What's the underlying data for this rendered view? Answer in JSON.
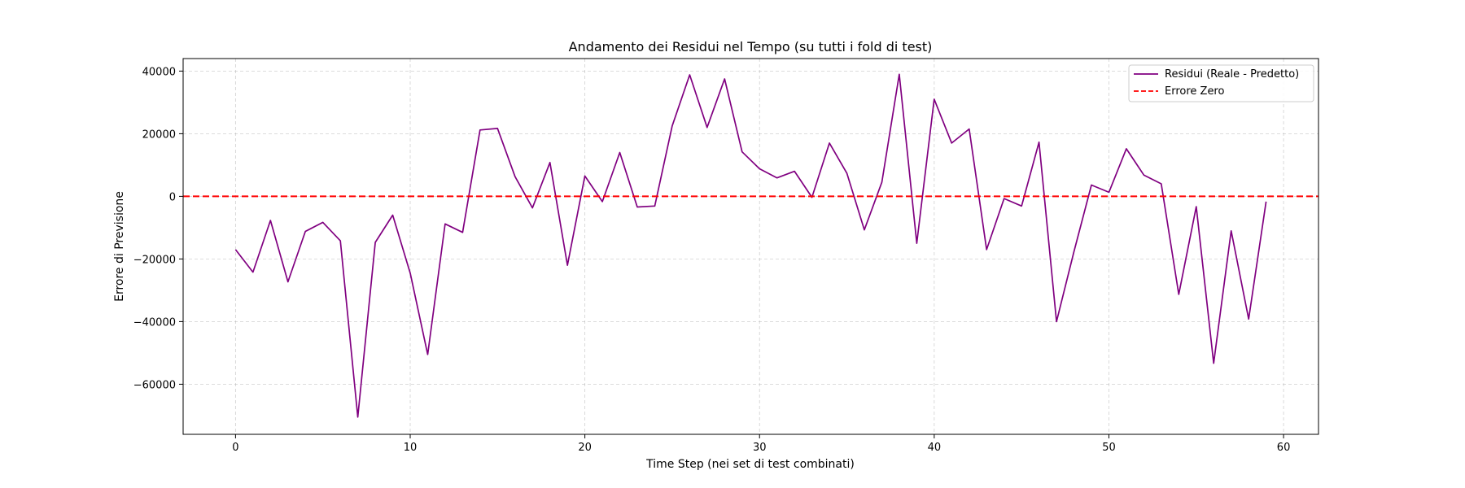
{
  "chart_data": {
    "type": "line",
    "title": "Andamento dei Residui nel Tempo (su tutti i fold di test)",
    "xlabel": "Time Step (nei set di test combinati)",
    "ylabel": "Errore di Previsione",
    "xlim": [
      -3,
      62
    ],
    "ylim": [
      -76000,
      44000
    ],
    "xticks": [
      0,
      10,
      20,
      30,
      40,
      50,
      60
    ],
    "xtick_labels": [
      "0",
      "10",
      "20",
      "30",
      "40",
      "50",
      "60"
    ],
    "yticks": [
      40000,
      20000,
      0,
      -20000,
      -40000,
      -60000
    ],
    "ytick_labels": [
      "40000",
      "20000",
      "0",
      "−20000",
      "−40000",
      "−60000"
    ],
    "grid": true,
    "legend_position": "top-right",
    "x": [
      0,
      1,
      2,
      3,
      4,
      5,
      6,
      7,
      8,
      9,
      10,
      11,
      12,
      13,
      14,
      15,
      16,
      17,
      18,
      19,
      20,
      21,
      22,
      23,
      24,
      25,
      26,
      27,
      28,
      29,
      30,
      31,
      32,
      33,
      34,
      35,
      36,
      37,
      38,
      39,
      40,
      41,
      42,
      43,
      44,
      45,
      46,
      47,
      48,
      49,
      50,
      51,
      52,
      53,
      54,
      55,
      56,
      57,
      58,
      59
    ],
    "series": [
      {
        "name": "Residui (Reale - Predetto)",
        "color": "#800080",
        "style": "solid",
        "values": [
          -17000,
          -24200,
          -7700,
          -27300,
          -11200,
          -8300,
          -14200,
          -70500,
          -14700,
          -6000,
          -24500,
          -50500,
          -8800,
          -11500,
          21200,
          21700,
          6300,
          -3700,
          10800,
          -22000,
          6500,
          -1700,
          14000,
          -3400,
          -3100,
          22500,
          38800,
          22000,
          37500,
          14200,
          8800,
          5900,
          8000,
          -300,
          17000,
          7400,
          -10700,
          4500,
          39000,
          -15000,
          31000,
          17000,
          21500,
          -17000,
          -700,
          -3100,
          17300,
          -40000,
          -17700,
          3600,
          1300,
          15200,
          6800,
          4000,
          -31300,
          -3300,
          -53300,
          -11000,
          -39200,
          -1700
        ]
      },
      {
        "name": "Errore Zero",
        "color": "#ff0000",
        "style": "dashed",
        "constant": 0
      }
    ]
  }
}
